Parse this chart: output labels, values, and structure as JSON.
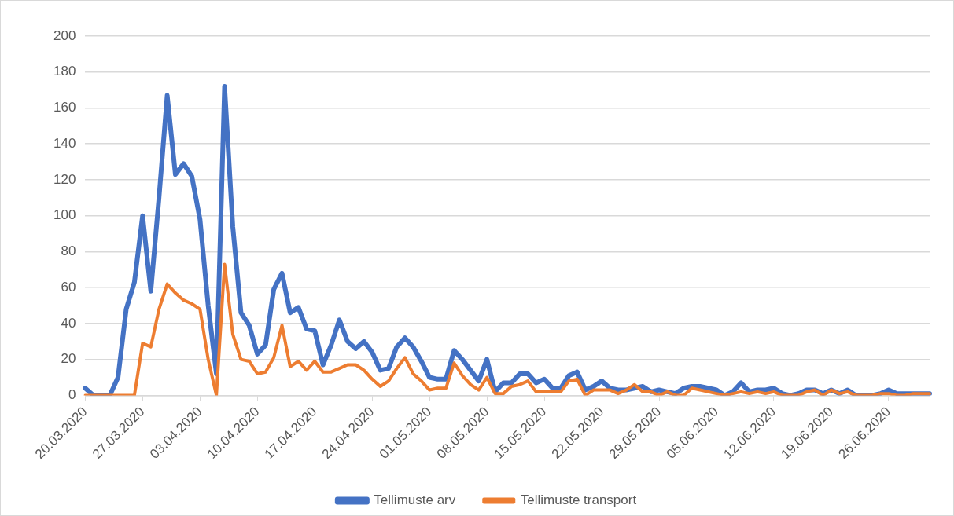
{
  "chart_data": {
    "type": "line",
    "categories": [
      "20.03.2020",
      null,
      null,
      null,
      null,
      null,
      null,
      "27.03.2020",
      null,
      null,
      null,
      null,
      null,
      null,
      "03.04.2020",
      null,
      null,
      null,
      null,
      null,
      null,
      "10.04.2020",
      null,
      null,
      null,
      null,
      null,
      null,
      "17.04.2020",
      null,
      null,
      null,
      null,
      null,
      null,
      "24.04.2020",
      null,
      null,
      null,
      null,
      null,
      null,
      "01.05.2020",
      null,
      null,
      null,
      null,
      null,
      null,
      "08.05.2020",
      null,
      null,
      null,
      null,
      null,
      null,
      "15.05.2020",
      null,
      null,
      null,
      null,
      null,
      null,
      "22.05.2020",
      null,
      null,
      null,
      null,
      null,
      null,
      "29.05.2020",
      null,
      null,
      null,
      null,
      null,
      null,
      "05.06.2020",
      null,
      null,
      null,
      null,
      null,
      null,
      "12.06.2020",
      null,
      null,
      null,
      null,
      null,
      null,
      "19.06.2020",
      null,
      null,
      null,
      null,
      null,
      null,
      "26.06.2020",
      null,
      null,
      null,
      null,
      null
    ],
    "series": [
      {
        "name": "Tellimuste arv",
        "color": "#4472c4",
        "values": [
          4,
          0,
          0,
          0,
          10,
          48,
          63,
          100,
          58,
          110,
          167,
          123,
          129,
          122,
          98,
          50,
          12,
          172,
          94,
          46,
          39,
          23,
          28,
          59,
          68,
          46,
          49,
          37,
          36,
          17,
          28,
          42,
          30,
          26,
          30,
          24,
          14,
          15,
          27,
          32,
          27,
          19,
          10,
          9,
          9,
          25,
          20,
          14,
          8,
          20,
          2,
          7,
          7,
          12,
          12,
          7,
          9,
          4,
          4,
          11,
          13,
          3,
          5,
          8,
          4,
          3,
          3,
          4,
          5,
          2,
          3,
          2,
          1,
          4,
          5,
          5,
          4,
          3,
          0,
          2,
          7,
          2,
          3,
          3,
          4,
          1,
          0,
          1,
          3,
          3,
          1,
          3,
          1,
          3,
          0,
          0,
          0,
          1,
          3,
          1,
          1,
          1,
          1,
          1
        ]
      },
      {
        "name": "Tellimuste transport",
        "color": "#ed7d31",
        "values": [
          0,
          0,
          0,
          0,
          0,
          0,
          0,
          29,
          27,
          48,
          62,
          57,
          53,
          51,
          48,
          20,
          0,
          73,
          34,
          20,
          19,
          12,
          13,
          21,
          39,
          16,
          19,
          14,
          19,
          13,
          13,
          15,
          17,
          17,
          14,
          9,
          5,
          8,
          15,
          21,
          12,
          8,
          3,
          4,
          4,
          18,
          11,
          6,
          3,
          10,
          1,
          1,
          5,
          6,
          8,
          2,
          2,
          2,
          2,
          8,
          9,
          0,
          3,
          3,
          3,
          1,
          3,
          6,
          2,
          2,
          0,
          2,
          0,
          0,
          4,
          3,
          2,
          1,
          0,
          1,
          2,
          1,
          2,
          1,
          2,
          0,
          0,
          0,
          2,
          3,
          0,
          3,
          1,
          2,
          0,
          0,
          0,
          1,
          1,
          0,
          0,
          1,
          1,
          1
        ]
      }
    ],
    "ylim": [
      0,
      200
    ],
    "yticks": [
      0,
      20,
      40,
      60,
      80,
      100,
      120,
      140,
      160,
      180,
      200
    ],
    "grid": "y",
    "legend": "bottom",
    "marker": "none",
    "line_style": "solid"
  }
}
